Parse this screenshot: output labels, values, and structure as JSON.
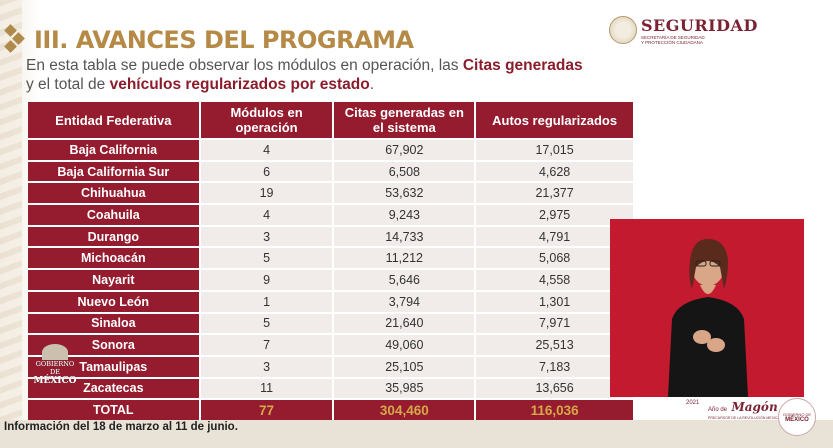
{
  "header": {
    "title": "III. AVANCES DEL PROGRAMA",
    "intro": {
      "part1": "En esta tabla se puede observar los módulos en operación, las ",
      "bold1": "Citas generadas",
      "part2": "y el total de ",
      "bold2": "vehículos regularizados por estado",
      "part3": "."
    }
  },
  "logo": {
    "name": "SEGURIDAD",
    "subtitle_line1": "SECRETARÍA DE SEGURIDAD",
    "subtitle_line2": "Y PROTECCIÓN CIUDADANA"
  },
  "table": {
    "headers": [
      "Entidad Federativa",
      "Módulos en operación",
      "Citas generadas en el sistema",
      "Autos regularizados"
    ],
    "rows": [
      {
        "state": "Baja California",
        "modules": "4",
        "appointments": "67,902",
        "cars": "17,015"
      },
      {
        "state": "Baja California Sur",
        "modules": "6",
        "appointments": "6,508",
        "cars": "4,628"
      },
      {
        "state": "Chihuahua",
        "modules": "19",
        "appointments": "53,632",
        "cars": "21,377"
      },
      {
        "state": "Coahuila",
        "modules": "4",
        "appointments": "9,243",
        "cars": "2,975"
      },
      {
        "state": "Durango",
        "modules": "3",
        "appointments": "14,733",
        "cars": "4,791"
      },
      {
        "state": "Michoacán",
        "modules": "5",
        "appointments": "11,212",
        "cars": "5,068"
      },
      {
        "state": "Nayarit",
        "modules": "9",
        "appointments": "5,646",
        "cars": "4,558"
      },
      {
        "state": "Nuevo León",
        "modules": "1",
        "appointments": "3,794",
        "cars": "1,301"
      },
      {
        "state": "Sinaloa",
        "modules": "5",
        "appointments": "21,640",
        "cars": "7,971"
      },
      {
        "state": "Sonora",
        "modules": "7",
        "appointments": "49,060",
        "cars": "25,513"
      },
      {
        "state": "Tamaulipas",
        "modules": "3",
        "appointments": "25,105",
        "cars": "7,183"
      },
      {
        "state": "Zacatecas",
        "modules": "11",
        "appointments": "35,985",
        "cars": "13,656"
      }
    ],
    "total": {
      "label": "TOTAL",
      "modules": "77",
      "appointments": "304,460",
      "cars": "116,036"
    }
  },
  "footnote": "Información del 18 de marzo al 11 de junio.",
  "gobierno_logo": {
    "line1": "GOBIERNO DE",
    "line2": "MÉXICO"
  },
  "magon_logo": {
    "prefix": "2021",
    "line1": "Año de",
    "name": "Magón",
    "line2": "PRECURSOR DE LA REVOLUCIÓN MEXICANA"
  },
  "badge": {
    "line1": "GOBIERNO DE",
    "line2": "MÉXICO"
  },
  "colors": {
    "primary": "#951b2e",
    "gold": "#b58a46",
    "total_value": "#d7a84a",
    "cell_bg": "#f1ecea",
    "interpreter_bg": "#c31a30"
  }
}
